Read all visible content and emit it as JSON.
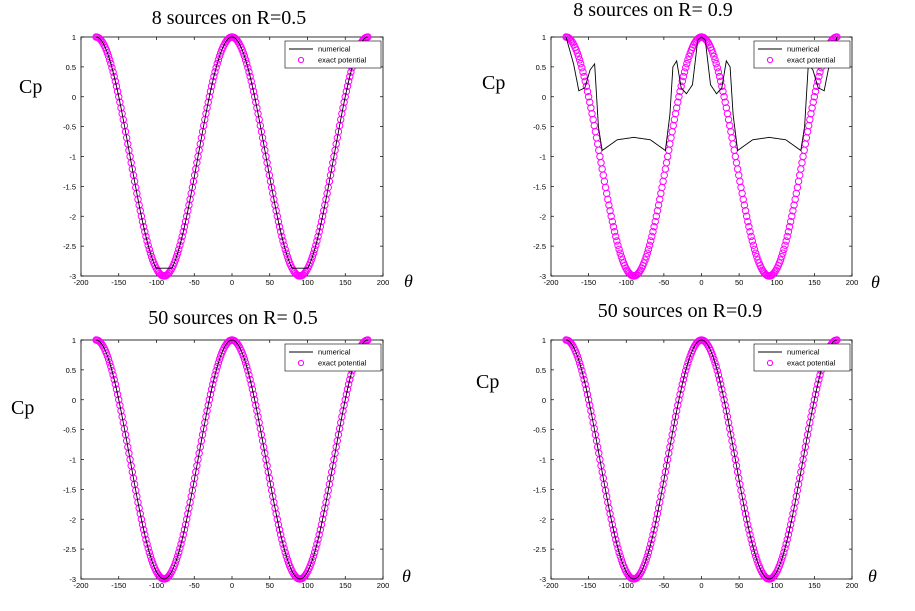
{
  "chart_data": [
    {
      "type": "line",
      "title": "8 sources on R=0.5",
      "ylabel": "Cp",
      "xlabel": "θ",
      "xlim": [
        -200,
        200
      ],
      "ylim": [
        -3,
        1
      ],
      "xticks": [
        "-200",
        "-150",
        "-100",
        "-50",
        "0",
        "50",
        "100",
        "150",
        "200"
      ],
      "yticks": [
        "1",
        "0.5",
        "0",
        "-0.5",
        "-1",
        "-1.5",
        "-2",
        "-2.5",
        "-3"
      ],
      "legend": [
        "numerical",
        "exact potential"
      ],
      "legend_position": "top-right",
      "grid": false,
      "series": [
        {
          "name": "numerical",
          "style": "line",
          "color": "#000000",
          "model": "exact",
          "min_value": -2.87
        },
        {
          "name": "exact potential",
          "style": "circle",
          "color": "#ff00ff",
          "formula": "1 - 4 sin^2(θ)",
          "x_range": [
            -180,
            180
          ]
        }
      ]
    },
    {
      "type": "line",
      "title": "8 sources on R= 0.9",
      "ylabel": "Cp",
      "xlabel": "θ",
      "xlim": [
        -200,
        200
      ],
      "ylim": [
        -3,
        1
      ],
      "xticks": [
        "-200",
        "-150",
        "-100",
        "-50",
        "0",
        "50",
        "100",
        "150",
        "200"
      ],
      "yticks": [
        "1",
        "0.5",
        "0",
        "-0.5",
        "-1",
        "-1.5",
        "-2",
        "-2.5",
        "-3"
      ],
      "legend": [
        "numerical",
        "exact potential"
      ],
      "legend_position": "top-right",
      "grid": false,
      "series": [
        {
          "name": "numerical",
          "style": "line",
          "color": "#000000",
          "model": "scalloped",
          "points": [
            [
              -180,
              1
            ],
            [
              -170,
              0.55
            ],
            [
              -163,
              0.1
            ],
            [
              -155,
              0.15
            ],
            [
              -148,
              0.45
            ],
            [
              -142,
              0.55
            ],
            [
              -137,
              -0.5
            ],
            [
              -132,
              -0.9
            ],
            [
              -112,
              -0.72
            ],
            [
              -90,
              -0.68
            ],
            [
              -68,
              -0.72
            ],
            [
              -48,
              -0.9
            ],
            [
              -42,
              -0.3
            ],
            [
              -38,
              0.5
            ],
            [
              -33,
              0.6
            ],
            [
              -27,
              0.15
            ],
            [
              -20,
              0.05
            ],
            [
              -12,
              0.2
            ],
            [
              -5,
              0.95
            ],
            [
              0,
              1
            ],
            [
              5,
              0.95
            ],
            [
              12,
              0.2
            ],
            [
              20,
              0.05
            ],
            [
              27,
              0.15
            ],
            [
              33,
              0.6
            ],
            [
              38,
              0.5
            ],
            [
              42,
              -0.3
            ],
            [
              48,
              -0.9
            ],
            [
              68,
              -0.72
            ],
            [
              90,
              -0.68
            ],
            [
              112,
              -0.72
            ],
            [
              132,
              -0.9
            ],
            [
              137,
              -0.5
            ],
            [
              142,
              0.55
            ],
            [
              148,
              0.45
            ],
            [
              155,
              0.15
            ],
            [
              163,
              0.1
            ],
            [
              170,
              0.55
            ],
            [
              180,
              1
            ]
          ]
        },
        {
          "name": "exact potential",
          "style": "circle",
          "color": "#ff00ff",
          "formula": "1 - 4 sin^2(θ)",
          "x_range": [
            -180,
            180
          ]
        }
      ]
    },
    {
      "type": "line",
      "title": "50 sources on R= 0.5",
      "ylabel": "Cp",
      "xlabel": "θ",
      "xlim": [
        -200,
        200
      ],
      "ylim": [
        -3,
        1
      ],
      "xticks": [
        "-200",
        "-150",
        "-100",
        "-50",
        "0",
        "50",
        "100",
        "150",
        "200"
      ],
      "yticks": [
        "1",
        "0.5",
        "0",
        "-0.5",
        "-1",
        "-1.5",
        "-2",
        "-2.5",
        "-3"
      ],
      "legend": [
        "numerical",
        "exact potential"
      ],
      "legend_position": "top-right",
      "grid": false,
      "series": [
        {
          "name": "numerical",
          "style": "line",
          "color": "#000000",
          "model": "exact",
          "min_value": -3
        },
        {
          "name": "exact potential",
          "style": "circle",
          "color": "#ff00ff",
          "formula": "1 - 4 sin^2(θ)",
          "x_range": [
            -180,
            180
          ]
        }
      ]
    },
    {
      "type": "line",
      "title": "50 sources on R=0.9",
      "ylabel": "Cp",
      "xlabel": "θ",
      "xlim": [
        -200,
        200
      ],
      "ylim": [
        -3,
        1
      ],
      "xticks": [
        "-200",
        "-150",
        "-100",
        "-50",
        "0",
        "50",
        "100",
        "150",
        "200"
      ],
      "yticks": [
        "1",
        "0.5",
        "0",
        "-0.5",
        "-1",
        "-1.5",
        "-2",
        "-2.5",
        "-3"
      ],
      "legend": [
        "numerical",
        "exact potential"
      ],
      "legend_position": "top-right",
      "grid": false,
      "series": [
        {
          "name": "numerical",
          "style": "line",
          "color": "#000000",
          "model": "exact",
          "min_value": -3
        },
        {
          "name": "exact potential",
          "style": "circle",
          "color": "#ff00ff",
          "formula": "1 - 4 sin^2(θ)",
          "x_range": [
            -180,
            180
          ]
        }
      ]
    }
  ]
}
